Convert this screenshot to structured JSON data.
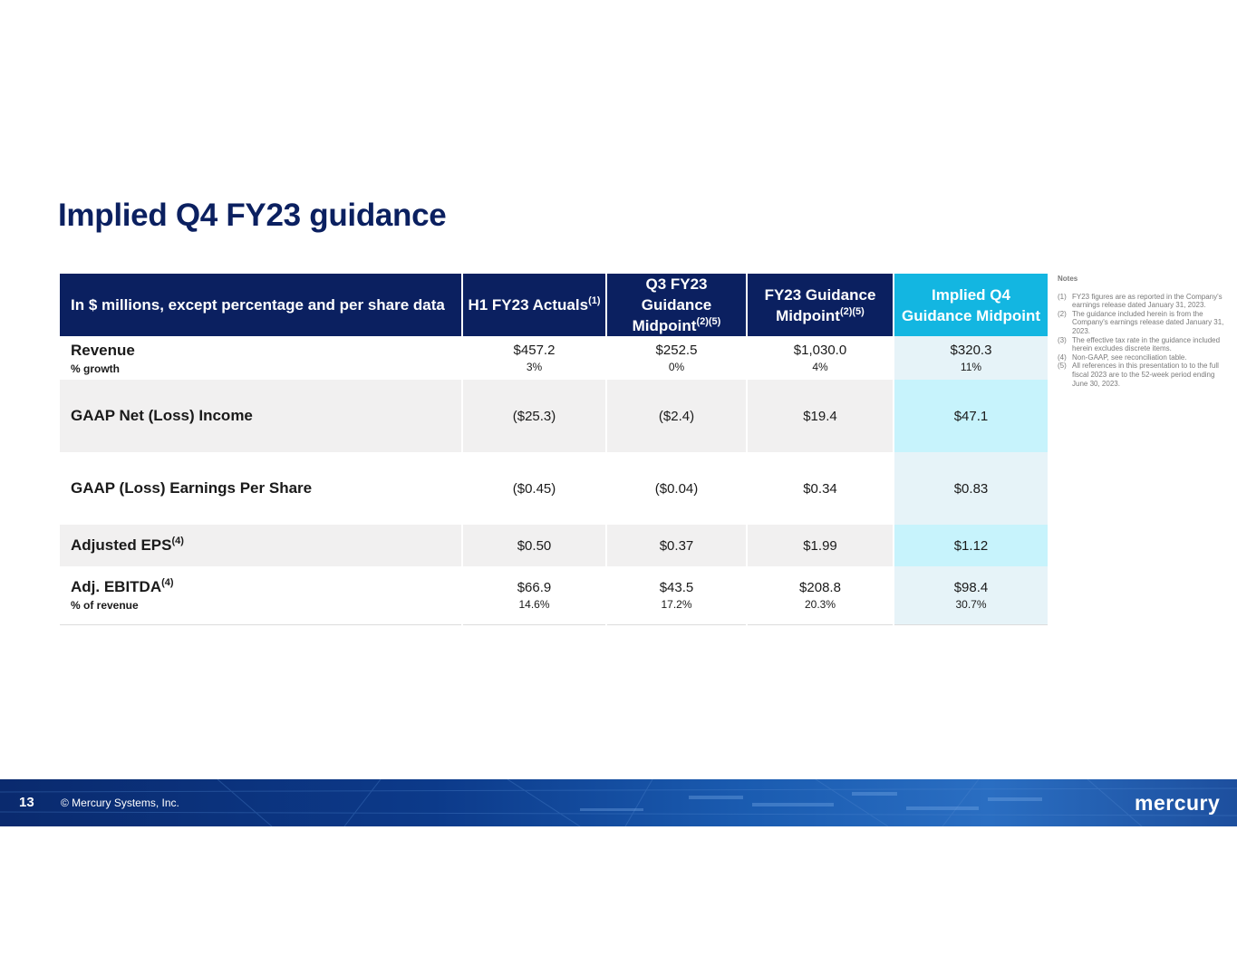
{
  "title": "Implied Q4 FY23 guidance",
  "table": {
    "headers": [
      {
        "text": "In $ millions, except percentage and per share data",
        "sup": ""
      },
      {
        "text": "H1 FY23 Actuals",
        "sup": "(1)"
      },
      {
        "line1": "Q3 FY23 Guidance",
        "line2": "Midpoint",
        "sup": "(2)(5)"
      },
      {
        "line1": "FY23 Guidance",
        "line2": "Midpoint",
        "sup": "(2)(5)"
      },
      {
        "line1": "Implied Q4",
        "line2": "Guidance Midpoint"
      }
    ],
    "rows": [
      {
        "label": "Revenue",
        "sup": "",
        "sub_label": "% growth",
        "values": [
          {
            "main": "$457.2",
            "sub": "3%"
          },
          {
            "main": "$252.5",
            "sub": "0%"
          },
          {
            "main": "$1,030.0",
            "sub": "4%"
          },
          {
            "main": "$320.3",
            "sub": "11%"
          }
        ]
      },
      {
        "label": "GAAP Net (Loss) Income",
        "sup": "",
        "values": [
          {
            "main": "($25.3)"
          },
          {
            "main": "($2.4)"
          },
          {
            "main": "$19.4"
          },
          {
            "main": "$47.1"
          }
        ]
      },
      {
        "label": "GAAP (Loss) Earnings Per Share",
        "sup": "",
        "values": [
          {
            "main": "($0.45)"
          },
          {
            "main": "($0.04)"
          },
          {
            "main": "$0.34"
          },
          {
            "main": "$0.83"
          }
        ]
      },
      {
        "label": "Adjusted EPS",
        "sup": "(4)",
        "values": [
          {
            "main": "$0.50"
          },
          {
            "main": "$0.37"
          },
          {
            "main": "$1.99"
          },
          {
            "main": "$1.12"
          }
        ]
      },
      {
        "label": "Adj. EBITDA",
        "sup": "(4)",
        "sub_label": "% of revenue",
        "values": [
          {
            "main": "$66.9",
            "sub": "14.6%"
          },
          {
            "main": "$43.5",
            "sub": "17.2%"
          },
          {
            "main": "$208.8",
            "sub": "20.3%"
          },
          {
            "main": "$98.4",
            "sub": "30.7%"
          }
        ]
      }
    ]
  },
  "notes": {
    "title": "Notes",
    "items": [
      {
        "num": "(1)",
        "text": "FY23 figures are as reported in the Company's earnings release dated January 31, 2023."
      },
      {
        "num": "(2)",
        "text": "The guidance included herein is from the Company's earnings release dated January 31, 2023."
      },
      {
        "num": "(3)",
        "text": "The effective tax rate in the guidance included herein excludes discrete items."
      },
      {
        "num": "(4)",
        "text": "Non-GAAP, see reconciliation table."
      },
      {
        "num": "(5)",
        "text": "All references in this presentation to to the full fiscal 2023 are to the 52-week period ending June 30, 2023."
      }
    ]
  },
  "footer": {
    "page_number": "13",
    "copyright": "© Mercury Systems, Inc.",
    "logo_text": "mercury"
  },
  "colors": {
    "navy": "#0b2060",
    "cyan": "#13b6e1",
    "implied_light": "#e6f3f8",
    "implied_bright": "#c7f3fc",
    "row_grey": "#f1f0f0"
  }
}
